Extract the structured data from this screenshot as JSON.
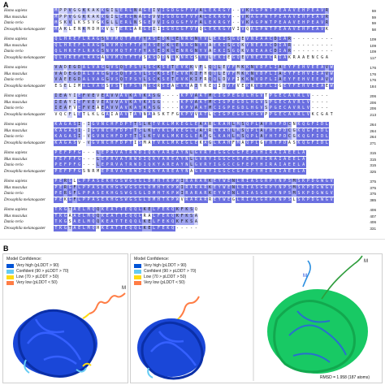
{
  "figure": {
    "panel_a_label": "A",
    "panel_b_label": "B"
  },
  "alignment": {
    "species": [
      "Homo sapiens",
      "Mus musculus",
      "Danio rerio",
      "Drosophila melanogaster"
    ],
    "blocks": [
      {
        "rows": [
          {
            "seq": "MPPVGGKKAKKGILERLNAGEIVIGDGGFVFALEKRGY--VKAGPWTPEAAVEHPEAVR",
            "pos": "59"
          },
          {
            "seq": "MPPVGGKKAKKGILERLNAGEVVIGDGGFVFALEKRGY--VKAGPWTPEAAVEHPEAVR",
            "pos": "59"
          },
          {
            "seq": "MSKVLKSSVGKGLLERLNSGEVVIGDGGFVFALEKRGY--VKAGPWTPEAAVEHPEAVR",
            "pos": "59"
          },
          {
            "seq": "MAKLENKMDHKVLTERLARGEIIIGDGGFVFQLEKRGYVIVQAGPWTPEAAVEHPEAVK",
            "pos": "58"
          }
        ]
      },
      {
        "rows": [
          {
            "seq": "QLHREFLRAGSNVMQTFTFYASEDKLENRGNYVLEKISGQEVNEAACDIAR---------Q",
            "pos": "109"
          },
          {
            "seq": "QLHREFLRAGSNVMQTFTFYASEDKLENRGNYVAEKISGQKVNEAACDIAR---------Q",
            "pos": "109"
          },
          {
            "seq": "QLHREFLRAGSNVMQTFTFYASEDKLENRGNYVAEKISGQKVNEAACDIAR---------Q",
            "pos": "109"
          },
          {
            "seq": "QLHREFLRAGANVMQTFTFSASDDNLKNRGSYVLEKIEGQEVNEAACRIAKRAAENCGA",
            "pos": "117"
          }
        ]
      },
      {
        "rows": [
          {
            "seq": "VADEGDALVAGGVSQTPSYLSCKSETEVKKVFLQQLEVFMKKNVDFLIAEYFEHVEEAVWA",
            "pos": "176"
          },
          {
            "seq": "VADEGDALVAGGVSQTPSYLSCKSETEVKKIFHQQLEVFMKKNVDFLIAEYFEHVEEAVWA",
            "pos": "176"
          },
          {
            "seq": "VAEEGDALVAGGVSQTPSYLSCKSETEVKKIFRQQLDVFIKKNVDFLIAEYFEHVEEAVWA",
            "pos": "176"
          },
          {
            "seq": "ESELIMALVAGSVSTTPSYMSCRSEAEVKAIYKEQIDVFVEKKVDFLIGEYFEHVEEAEWA",
            "pos": "184"
          }
        ]
      },
      {
        "rows": [
          {
            "seq": "IEAYIEFVEVEAVVAVKAYKASG----KPVAATMCIGPEGDLHGVTPGECAVRLV----",
            "pos": "206"
          },
          {
            "seq": "IEAYIEFVEVEAVVAVKAYKASG----KPVAATMCIGPEGDLHGVSPGECAVRLV----",
            "pos": "206"
          },
          {
            "seq": "IEAFVEFVEAEAVVAVKAYKASG----KPVAATMCIGPEGDLHGVSPGECAVRLV----",
            "pos": "206"
          },
          {
            "seq": "VQCFLETLKLGAIAAVTAYNAASKTFGKPVVATLCIGPEGDLHGVPPGECAVRLVKCGAT",
            "pos": "213"
          }
        ]
      },
      {
        "rows": [
          {
            "seq": "KAGASI-IGVNCHFDPTTSLKTVKLMKEGLEAARLKAHLMSQPLAYHTPDCNKQGFIDL",
            "pos": "264"
          },
          {
            "seq": "KAGASI-IGVNCHFDPTTSLKTVKLMKEGLEAARLKAHLMSQPLAYHTPDCGKQGFIDL",
            "pos": "264"
          },
          {
            "seq": "KAGASI-VGVNCHFDPTTSLKTVKLMKEGLEAAGLKAHLMSQPLAYHTPDCGKQGFIDL",
            "pos": "264"
          },
          {
            "seq": "KAGASV-VGVNCHFDPTISMATVKLMKEGLEKAGLKAHFMAQPLGYHTPDASKQGFIDL",
            "pos": "271"
          }
        ]
      },
      {
        "rows": [
          {
            "seq": "PEFPFG---LEPRVATRWDIQKYAREAYNLGVRYIGGCCGFEPYHIRAIAEELA",
            "pos": "315"
          },
          {
            "seq": "PEFPFG---LEPRVATRWDIQKYAREAYNLGVRYIGGCCGFEPYHIRAIAEELA",
            "pos": "315"
          },
          {
            "seq": "PEFPFG---LEPRVATRWDIQKYAREAYNLGVRYIGGCCGFEPYHIRAIAEELA",
            "pos": "315"
          },
          {
            "seq": "PEFPFGSNRMEPRVATRWDIQKYAREAYNAGVRYIGGCCGFEPYHIRAIAEELA",
            "pos": "325"
          }
        ]
      },
      {
        "rows": [
          {
            "seq": "PERGLLPPASEKHGSWGSGLDMHTKPWIRARARKEYWENLRIASGRPYNPSMSKPDGWGV",
            "pos": "375"
          },
          {
            "seq": "PERGFLPPASEKHGSWGSGLDMHTKPWIRARARKEYWENLRIASGRPYNPSMSKPDGWGV",
            "pos": "375"
          },
          {
            "seq": "PERGFLPPASEKHGSWGSGLDMHTKPWIRARARKEYWENLRIASGRPYNPSMSKPDGWGV",
            "pos": "375"
          },
          {
            "seq": "PEKGFLPPASEKHGSWGSGLDMHTKPWVRARARREYWEGLRIASGRPYNPSLSKPDGWGV",
            "pos": "385"
          }
        ]
      },
      {
        "rows": [
          {
            "seq": "TKGTAELMQQKEATTEQQLKELFEKQKFKSQ",
            "pos": "406"
          },
          {
            "seq": "TKGAAELMQQKEATTEQQLRALFEKQKFKSA",
            "pos": "407"
          },
          {
            "seq": "TKGSAELMQQKEATTEQQLKELFEKQKFKSA",
            "pos": "406"
          },
          {
            "seq": "TKGTAELMQHKEATTEQQLKELFEKQ-----",
            "pos": "331"
          }
        ]
      }
    ]
  },
  "structures": {
    "legend_title": "Model Confidence:",
    "legend_items": [
      {
        "label": "Very high (pLDDT > 90)",
        "color": "#0053d6"
      },
      {
        "label": "Confident (90 > pLDDT > 70)",
        "color": "#65cbf3"
      },
      {
        "label": "Low (70 > pLDDT > 50)",
        "color": "#ffdb13"
      },
      {
        "label": "Very low (pLDDT < 50)",
        "color": "#ff7d45"
      }
    ],
    "terminus_label": "M",
    "terminus_label_blue": "M",
    "rmsd": "RMSD = 1.958 (187 atoms)"
  }
}
